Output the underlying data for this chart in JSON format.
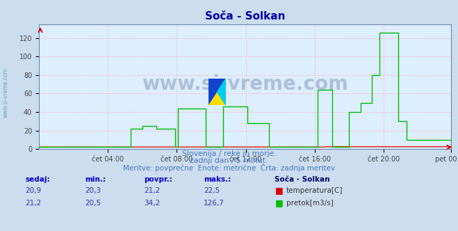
{
  "title": "Soča - Solkan",
  "bg_color": "#ccddf0",
  "plot_bg_color": "#ddeeff",
  "grid_color": "#ffaaaa",
  "xlabel_ticks": [
    "čet 04:00",
    "čet 08:00",
    "čet 12:00",
    "čet 16:00",
    "čet 20:00",
    "pet 00:00"
  ],
  "ylabel_ticks": [
    0,
    20,
    40,
    60,
    80,
    100,
    120
  ],
  "ylim": [
    0,
    135
  ],
  "xlim": [
    0,
    287
  ],
  "temp_color": "#dd0000",
  "flow_color": "#00bb00",
  "watermark": "www.si-vreme.com",
  "watermark_color": "#1a3a6a",
  "subtitle1": "Slovenija / reke in morje.",
  "subtitle2": "zadnji dan / 5 minut.",
  "subtitle3": "Meritve: povprečne  Enote: metrične  Črta: zadnja meritev",
  "subtitle_color": "#4477bb",
  "table_headers": [
    "sedaj:",
    "min.:",
    "povpr.:",
    "maks.:"
  ],
  "table_header_color": "#0000cc",
  "table_data_color": "#3333aa",
  "station_label": "Soča - Solkan",
  "station_label_color": "#000066",
  "row1": [
    "20,9",
    "20,3",
    "21,2",
    "22,5"
  ],
  "row2": [
    "21,2",
    "20,5",
    "34,2",
    "126,7"
  ],
  "legend_labels": [
    "temperatura[C]",
    "pretok[m3/s]"
  ],
  "legend_colors": [
    "#dd0000",
    "#00bb00"
  ],
  "left_label": "www.si-vreme.com",
  "left_label_color": "#5599bb",
  "tick_positions": [
    48,
    96,
    144,
    192,
    240,
    287
  ]
}
